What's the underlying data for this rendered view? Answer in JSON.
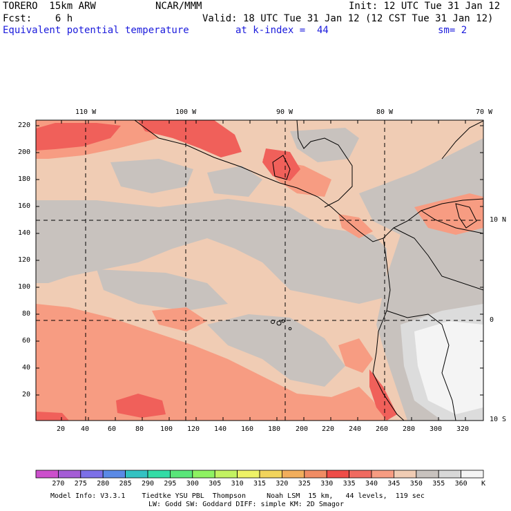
{
  "header": {
    "model": "TORERO  15km ARW",
    "org": "NCAR/MMM",
    "init": "Init: 12 UTC Tue 31 Jan 12",
    "fcst": "Fcst:    6 h",
    "valid": "Valid: 18 UTC Tue 31 Jan 12 (12 CST Tue 31 Jan 12)",
    "field": "Equivalent potential temperature",
    "level": "at k-index =  44",
    "smooth": "sm= 2"
  },
  "map": {
    "top_lon_labels": [
      "110 W",
      "100 W",
      "90 W",
      "80 W",
      "70 W"
    ],
    "right_lat_labels": [
      "10 N",
      "0",
      "10 S"
    ],
    "y_grid_labels": [
      "220",
      "200",
      "180",
      "160",
      "140",
      "120",
      "100",
      "80",
      "60",
      "40",
      "20"
    ],
    "x_grid_labels": [
      "20",
      "40",
      "60",
      "80",
      "100",
      "120",
      "140",
      "160",
      "180",
      "200",
      "220",
      "240",
      "260",
      "280",
      "300",
      "320"
    ],
    "colors": {
      "c335": "#f0605a",
      "c340": "#f79c82",
      "c345": "#f0ccb4",
      "c350": "#c8c2be",
      "c355": "#dcdcdc",
      "c360": "#f4f4f4"
    }
  },
  "colorbar": {
    "unit": "K",
    "labels": [
      "270",
      "275",
      "280",
      "285",
      "290",
      "295",
      "300",
      "305",
      "310",
      "315",
      "320",
      "325",
      "330",
      "335",
      "340",
      "345",
      "350",
      "355",
      "360"
    ],
    "colors": [
      "#cc4fcc",
      "#a45cd6",
      "#7c70e8",
      "#5a8ae6",
      "#33c2c2",
      "#33dca6",
      "#59e679",
      "#8ef262",
      "#c3f262",
      "#eef266",
      "#f2d45c",
      "#f2ae5c",
      "#f08c64",
      "#ee4c48",
      "#f06a60",
      "#f79c82",
      "#f0ccb4",
      "#c8c2be",
      "#d8d8d8",
      "#f4f4f4"
    ]
  },
  "footer": {
    "line1": "Model Info: V3.3.1    Tiedtke YSU PBL  Thompson     Noah LSM  15 km,   44 levels,  119 sec",
    "line2": "LW: Godd SW: Goddard DIFF: simple KM: 2D Smagor"
  }
}
